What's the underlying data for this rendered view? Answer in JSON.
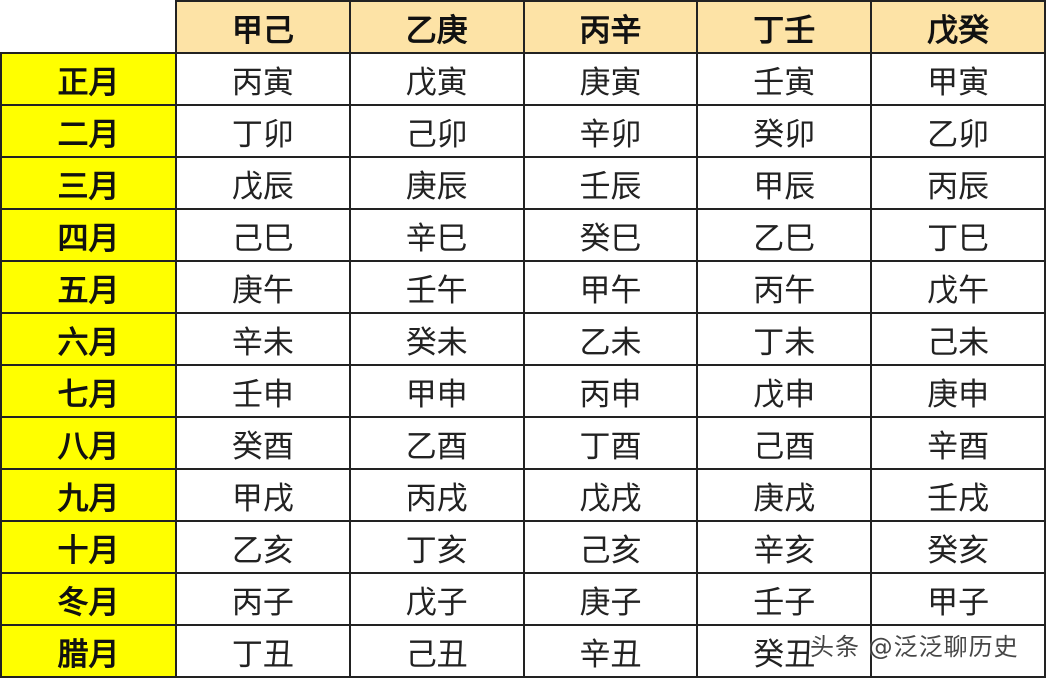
{
  "header": {
    "corner": "",
    "columns": [
      "甲己",
      "乙庚",
      "丙辛",
      "丁壬",
      "戊癸"
    ]
  },
  "rows": [
    {
      "month": "正月",
      "cells": [
        "丙寅",
        "戊寅",
        "庚寅",
        "壬寅",
        "甲寅"
      ]
    },
    {
      "month": "二月",
      "cells": [
        "丁卯",
        "己卯",
        "辛卯",
        "癸卯",
        "乙卯"
      ]
    },
    {
      "month": "三月",
      "cells": [
        "戊辰",
        "庚辰",
        "壬辰",
        "甲辰",
        "丙辰"
      ]
    },
    {
      "month": "四月",
      "cells": [
        "己巳",
        "辛巳",
        "癸巳",
        "乙巳",
        "丁巳"
      ]
    },
    {
      "month": "五月",
      "cells": [
        "庚午",
        "壬午",
        "甲午",
        "丙午",
        "戊午"
      ]
    },
    {
      "month": "六月",
      "cells": [
        "辛未",
        "癸未",
        "乙未",
        "丁未",
        "己未"
      ]
    },
    {
      "month": "七月",
      "cells": [
        "壬申",
        "甲申",
        "丙申",
        "戊申",
        "庚申"
      ]
    },
    {
      "month": "八月",
      "cells": [
        "癸酉",
        "乙酉",
        "丁酉",
        "己酉",
        "辛酉"
      ]
    },
    {
      "month": "九月",
      "cells": [
        "甲戌",
        "丙戌",
        "戊戌",
        "庚戌",
        "壬戌"
      ]
    },
    {
      "month": "十月",
      "cells": [
        "乙亥",
        "丁亥",
        "己亥",
        "辛亥",
        "癸亥"
      ]
    },
    {
      "month": "冬月",
      "cells": [
        "丙子",
        "戊子",
        "庚子",
        "壬子",
        "甲子"
      ]
    },
    {
      "month": "腊月",
      "cells": [
        "丁丑",
        "己丑",
        "辛丑",
        "癸丑",
        ""
      ]
    }
  ],
  "watermark": "头条 @泛泛聊历史",
  "colors": {
    "header_bg": "#fde3a6",
    "month_bg": "#ffff00",
    "border": "#222222"
  }
}
